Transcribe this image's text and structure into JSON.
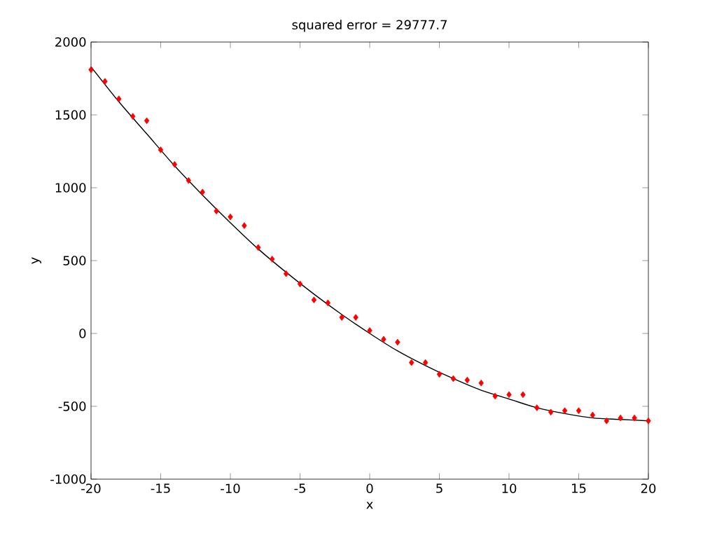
{
  "chart_data": {
    "type": "scatter",
    "title": "squared error = 29777.7",
    "xlabel": "x",
    "ylabel": "y",
    "xlim": [
      -20,
      20
    ],
    "ylim": [
      -1000,
      2000
    ],
    "xticks": [
      -20,
      -15,
      -10,
      -5,
      0,
      5,
      10,
      15,
      20
    ],
    "yticks": [
      -1000,
      -500,
      0,
      500,
      1000,
      1500,
      2000
    ],
    "series": [
      {
        "color": "#ff0000",
        "marker": "diamond",
        "x": [
          -20,
          -19,
          -18,
          -17,
          -16,
          -15,
          -14,
          -13,
          -12,
          -11,
          -10,
          -9,
          -8,
          -7,
          -6,
          -5,
          -4,
          -3,
          -2,
          -1,
          0,
          1,
          2,
          3,
          4,
          5,
          6,
          7,
          8,
          9,
          10,
          11,
          12,
          13,
          14,
          15,
          16,
          17,
          18,
          19,
          20
        ],
        "values": [
          1810,
          1730,
          1610,
          1490,
          1460,
          1260,
          1160,
          1050,
          970,
          840,
          800,
          740,
          590,
          510,
          410,
          340,
          230,
          210,
          110,
          110,
          20,
          -40,
          -60,
          -200,
          -200,
          -280,
          -310,
          -320,
          -340,
          -430,
          -420,
          -420,
          -510,
          -540,
          -530,
          -530,
          -560,
          -600,
          -580,
          -580,
          -600
        ]
      },
      {
        "type": "line",
        "color": "#000000",
        "marker": "none",
        "x": [
          -20,
          -18,
          -16,
          -14,
          -12,
          -10,
          -8,
          -6,
          -4,
          -2,
          0,
          2,
          4,
          6,
          8,
          10,
          12,
          14,
          16,
          18,
          20
        ],
        "values": [
          1830,
          1590,
          1370,
          1150,
          950,
          760,
          580,
          420,
          270,
          130,
          0,
          -120,
          -220,
          -310,
          -390,
          -450,
          -510,
          -550,
          -580,
          -590,
          -600
        ]
      }
    ]
  }
}
